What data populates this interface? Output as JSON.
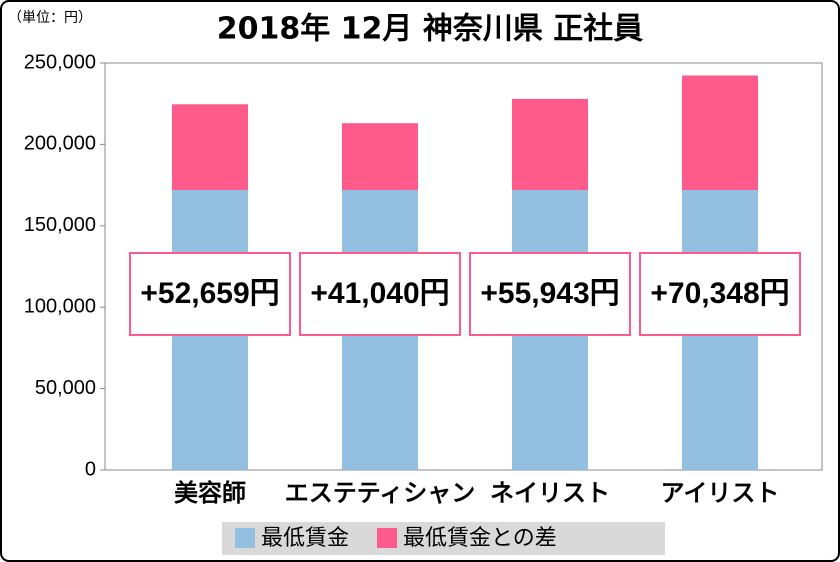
{
  "chart_data": {
    "type": "stacked-bar",
    "title": "2018年 12月 神奈川県 正社員",
    "unit_label": "（単位：円）",
    "categories": [
      "美容師",
      "エステティシャン",
      "ネイリスト",
      "アイリスト"
    ],
    "series": [
      {
        "name": "最低賃金",
        "color": "#93bfe0",
        "values": [
          172000,
          172000,
          172000,
          172000
        ]
      },
      {
        "name": "最低賃金との差",
        "color": "#ff5a8c",
        "values": [
          52659,
          41040,
          55943,
          70348
        ],
        "value_labels": [
          "+52,659円",
          "+41,040円",
          "+55,943円",
          "+70,348円"
        ]
      }
    ],
    "ylim": [
      0,
      250000
    ],
    "yticks": [
      0,
      {
        "value": 50000,
        "label": "50,000"
      },
      {
        "value": 100000,
        "label": "100,000"
      },
      {
        "value": 150000,
        "label": "150,000"
      },
      {
        "value": 200000,
        "label": "200,000"
      },
      {
        "value": 250000,
        "label": "250,000"
      }
    ],
    "grid": false,
    "legend": "bottom"
  }
}
